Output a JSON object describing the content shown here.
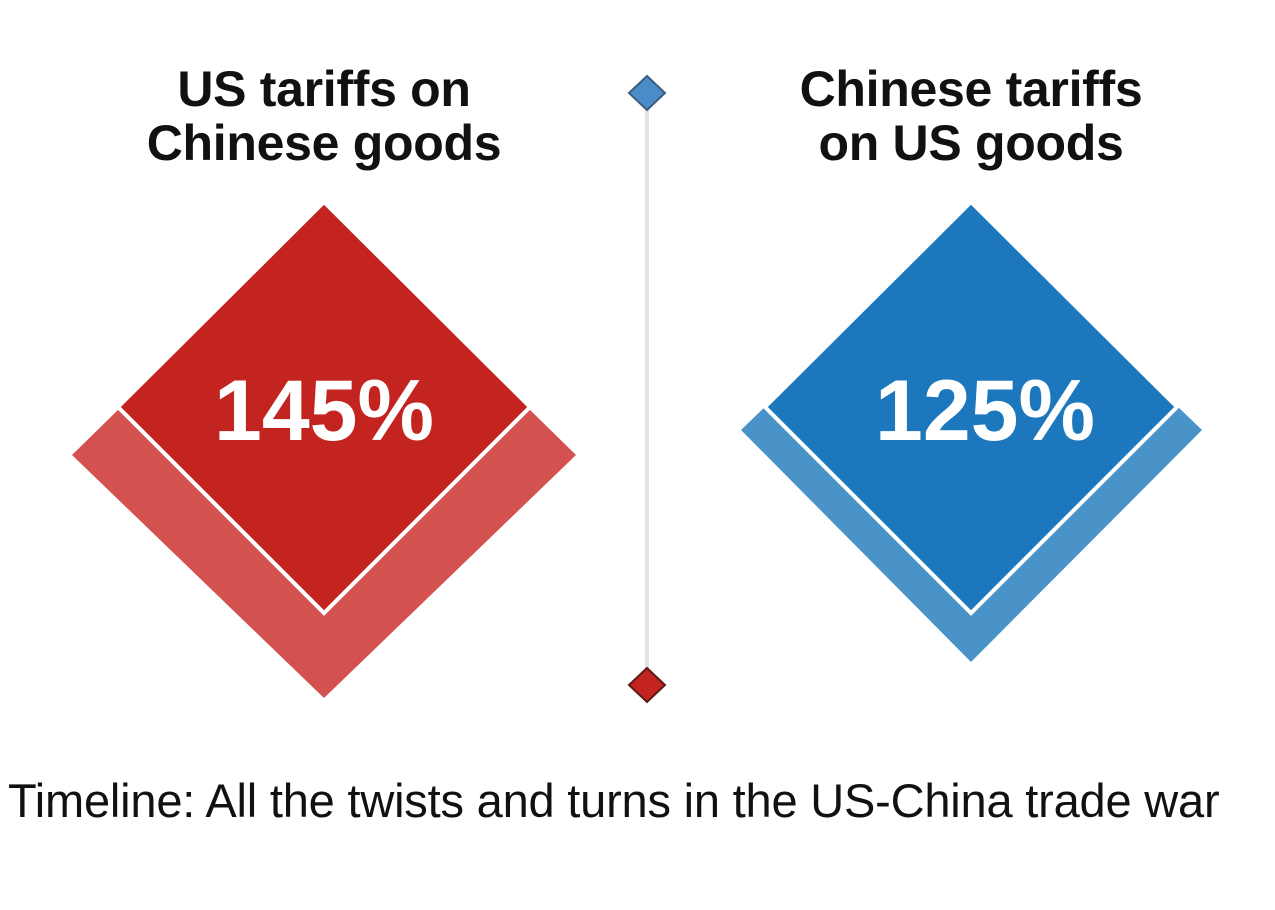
{
  "chart_data": {
    "type": "other",
    "panels": [
      {
        "title_lines": [
          "US tariffs on",
          "Chinese goods"
        ],
        "value": 145,
        "value_label": "145%",
        "color_main": "#c4241f",
        "color_shadow": "#d35250"
      },
      {
        "title_lines": [
          "Chinese tariffs",
          "on US goods"
        ],
        "value": 125,
        "value_label": "125%",
        "color_main": "#1c77bd",
        "color_shadow": "#4a93c9"
      }
    ],
    "slider": {
      "top_marker_color": "#4a8cc7",
      "bottom_marker_color": "#c4241f",
      "track_color": "#e3e3e3"
    }
  },
  "headline": {
    "text": "Timeline: All the twists and turns in the US-China trade war"
  }
}
